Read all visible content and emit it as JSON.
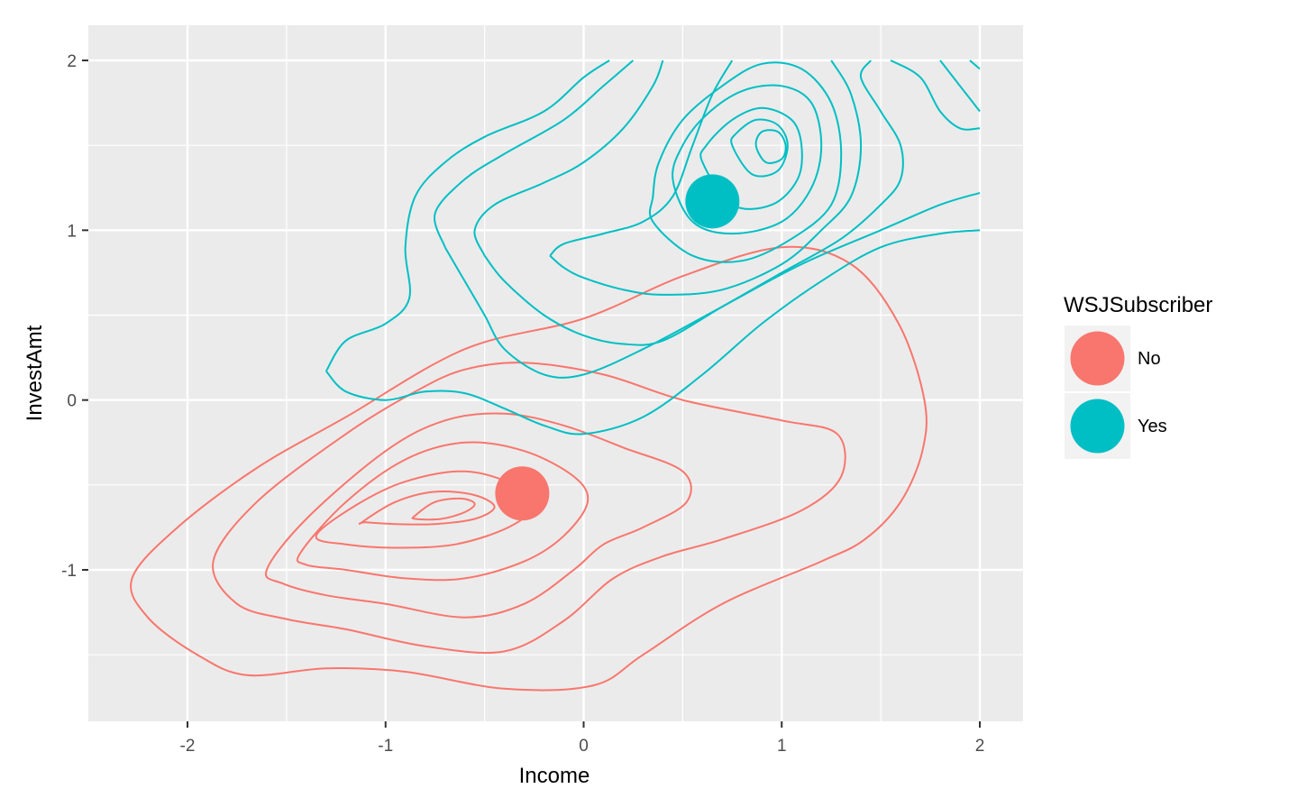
{
  "chart_data": {
    "type": "density2d",
    "xlabel": "Income",
    "ylabel": "InvestAmt",
    "xlim": [
      -2.5,
      2.2
    ],
    "ylim": [
      -1.9,
      2.1
    ],
    "xticks": [
      -2,
      -1,
      0,
      1,
      2
    ],
    "yticks": [
      -1,
      0,
      1,
      2
    ],
    "grid": true,
    "legend": {
      "title": "WSJSubscriber",
      "placement": "right",
      "entries": [
        {
          "label": "No",
          "color": "#F8766D"
        },
        {
          "label": "Yes",
          "color": "#00BFC4"
        }
      ]
    },
    "series": [
      {
        "name": "No",
        "color": "#F8766D",
        "center": {
          "x": -0.31,
          "y": -0.55
        },
        "contours": [
          [
            [
              -2.28,
              -1.05
            ],
            [
              -2.05,
              -0.75
            ],
            [
              -1.65,
              -0.4
            ],
            [
              -1.2,
              -0.1
            ],
            [
              -0.6,
              0.3
            ],
            [
              0,
              0.48
            ],
            [
              0.5,
              0.73
            ],
            [
              1.0,
              0.9
            ],
            [
              1.35,
              0.8
            ],
            [
              1.59,
              0.45
            ],
            [
              1.72,
              0
            ],
            [
              1.71,
              -0.3
            ],
            [
              1.6,
              -0.6
            ],
            [
              1.42,
              -0.82
            ],
            [
              1.2,
              -0.95
            ],
            [
              0.7,
              -1.2
            ],
            [
              0.3,
              -1.5
            ],
            [
              0.05,
              -1.68
            ],
            [
              -0.4,
              -1.7
            ],
            [
              -0.9,
              -1.6
            ],
            [
              -1.3,
              -1.58
            ],
            [
              -1.7,
              -1.62
            ],
            [
              -1.95,
              -1.5
            ],
            [
              -2.2,
              -1.28
            ]
          ],
          [
            [
              -1.87,
              -0.95
            ],
            [
              -1.65,
              -0.6
            ],
            [
              -1.2,
              -0.2
            ],
            [
              -0.85,
              0.05
            ],
            [
              -0.6,
              0.18
            ],
            [
              -0.3,
              0.22
            ],
            [
              0.1,
              0.15
            ],
            [
              0.5,
              0.0
            ],
            [
              1.0,
              -0.12
            ],
            [
              1.28,
              -0.2
            ],
            [
              1.3,
              -0.45
            ],
            [
              1.1,
              -0.65
            ],
            [
              0.7,
              -0.82
            ],
            [
              0.4,
              -0.92
            ],
            [
              0.15,
              -1.05
            ],
            [
              -0.1,
              -1.3
            ],
            [
              -0.4,
              -1.48
            ],
            [
              -0.8,
              -1.45
            ],
            [
              -1.2,
              -1.35
            ],
            [
              -1.5,
              -1.29
            ],
            [
              -1.75,
              -1.2
            ]
          ],
          [
            [
              -1.6,
              -1.0
            ],
            [
              -1.4,
              -0.7
            ],
            [
              -1.0,
              -0.3
            ],
            [
              -0.7,
              -0.12
            ],
            [
              -0.4,
              -0.08
            ],
            [
              -0.1,
              -0.15
            ],
            [
              0.2,
              -0.28
            ],
            [
              0.5,
              -0.42
            ],
            [
              0.52,
              -0.6
            ],
            [
              0.3,
              -0.75
            ],
            [
              0.1,
              -0.85
            ],
            [
              -0.05,
              -1.0
            ],
            [
              -0.3,
              -1.2
            ],
            [
              -0.6,
              -1.28
            ],
            [
              -1.0,
              -1.2
            ],
            [
              -1.3,
              -1.15
            ],
            [
              -1.52,
              -1.08
            ]
          ],
          [
            [
              -1.43,
              -0.9
            ],
            [
              -1.2,
              -0.6
            ],
            [
              -0.9,
              -0.35
            ],
            [
              -0.6,
              -0.25
            ],
            [
              -0.3,
              -0.3
            ],
            [
              -0.05,
              -0.45
            ],
            [
              0.02,
              -0.6
            ],
            [
              -0.1,
              -0.8
            ],
            [
              -0.3,
              -0.95
            ],
            [
              -0.6,
              -1.05
            ],
            [
              -0.9,
              -1.05
            ],
            [
              -1.2,
              -1.0
            ],
            [
              -1.4,
              -0.97
            ]
          ],
          [
            [
              -1.35,
              -0.8
            ],
            [
              -1.15,
              -0.62
            ],
            [
              -0.9,
              -0.48
            ],
            [
              -0.6,
              -0.42
            ],
            [
              -0.35,
              -0.5
            ],
            [
              -0.25,
              -0.62
            ],
            [
              -0.38,
              -0.75
            ],
            [
              -0.65,
              -0.85
            ],
            [
              -0.95,
              -0.87
            ],
            [
              -1.2,
              -0.85
            ]
          ],
          [
            [
              -1.12,
              -0.72
            ],
            [
              -0.95,
              -0.6
            ],
            [
              -0.75,
              -0.54
            ],
            [
              -0.55,
              -0.56
            ],
            [
              -0.45,
              -0.63
            ],
            [
              -0.55,
              -0.7
            ],
            [
              -0.75,
              -0.73
            ],
            [
              -0.95,
              -0.73
            ],
            [
              -1.1,
              -0.72
            ]
          ],
          [
            [
              -0.85,
              -0.68
            ],
            [
              -0.75,
              -0.6
            ],
            [
              -0.62,
              -0.58
            ],
            [
              -0.55,
              -0.61
            ],
            [
              -0.6,
              -0.66
            ],
            [
              -0.72,
              -0.7
            ],
            [
              -0.85,
              -0.7
            ]
          ]
        ]
      },
      {
        "name": "Yes",
        "color": "#00BFC4",
        "center": {
          "x": 0.65,
          "y": 1.17
        },
        "contours": [
          [
            [
              -1.3,
              0.17
            ],
            [
              -1.2,
              0.35
            ],
            [
              -1.0,
              0.45
            ],
            [
              -0.88,
              0.6
            ],
            [
              -0.9,
              0.9
            ],
            [
              -0.85,
              1.2
            ],
            [
              -0.7,
              1.4
            ],
            [
              -0.5,
              1.55
            ],
            [
              -0.2,
              1.7
            ],
            [
              0.0,
              1.9
            ],
            [
              0.13,
              2.0
            ]
          ],
          [
            [
              -1.3,
              0.17
            ],
            [
              -1.2,
              0.05
            ],
            [
              -1.0,
              0.0
            ],
            [
              -0.8,
              0.05
            ],
            [
              -0.6,
              0.04
            ],
            [
              -0.4,
              -0.05
            ],
            [
              -0.2,
              -0.15
            ],
            [
              0.0,
              -0.2
            ],
            [
              0.3,
              -0.1
            ],
            [
              0.6,
              0.15
            ],
            [
              0.9,
              0.45
            ],
            [
              1.2,
              0.7
            ],
            [
              1.5,
              0.9
            ],
            [
              1.8,
              0.98
            ],
            [
              2.0,
              1.0
            ]
          ],
          [
            [
              -0.7,
              0.9
            ],
            [
              -0.75,
              1.1
            ],
            [
              -0.6,
              1.3
            ],
            [
              -0.4,
              1.45
            ],
            [
              -0.1,
              1.65
            ],
            [
              0.1,
              1.85
            ],
            [
              0.25,
              2.0
            ]
          ],
          [
            [
              -0.7,
              0.9
            ],
            [
              -0.6,
              0.7
            ],
            [
              -0.5,
              0.5
            ],
            [
              -0.4,
              0.3
            ],
            [
              -0.2,
              0.15
            ],
            [
              0.0,
              0.15
            ],
            [
              0.3,
              0.3
            ],
            [
              0.7,
              0.55
            ],
            [
              1.1,
              0.8
            ],
            [
              1.5,
              1.0
            ],
            [
              1.8,
              1.15
            ],
            [
              2.0,
              1.22
            ]
          ],
          [
            [
              -0.5,
              0.85
            ],
            [
              -0.55,
              1.0
            ],
            [
              -0.45,
              1.15
            ],
            [
              -0.2,
              1.28
            ],
            [
              0.0,
              1.4
            ],
            [
              0.2,
              1.6
            ],
            [
              0.35,
              1.85
            ],
            [
              0.4,
              2.0
            ]
          ],
          [
            [
              -0.5,
              0.85
            ],
            [
              -0.4,
              0.7
            ],
            [
              -0.2,
              0.5
            ],
            [
              0.0,
              0.38
            ],
            [
              0.2,
              0.33
            ],
            [
              0.4,
              0.35
            ],
            [
              0.7,
              0.55
            ],
            [
              1.0,
              0.75
            ],
            [
              1.3,
              0.95
            ],
            [
              1.5,
              1.15
            ],
            [
              1.6,
              1.3
            ],
            [
              1.6,
              1.5
            ],
            [
              1.5,
              1.7
            ],
            [
              1.4,
              1.9
            ],
            [
              1.45,
              2.0
            ]
          ],
          [
            [
              -0.17,
              0.85
            ],
            [
              -0.1,
              0.92
            ],
            [
              0.1,
              0.98
            ],
            [
              0.3,
              1.05
            ],
            [
              0.45,
              1.2
            ],
            [
              0.55,
              1.5
            ],
            [
              0.65,
              1.8
            ],
            [
              0.75,
              2.0
            ]
          ],
          [
            [
              -0.17,
              0.85
            ],
            [
              -0.1,
              0.78
            ],
            [
              0.0,
              0.72
            ],
            [
              0.2,
              0.65
            ],
            [
              0.4,
              0.62
            ],
            [
              0.7,
              0.65
            ],
            [
              1.0,
              0.8
            ],
            [
              1.2,
              1.0
            ],
            [
              1.35,
              1.2
            ],
            [
              1.4,
              1.5
            ],
            [
              1.35,
              1.8
            ],
            [
              1.25,
              2.0
            ]
          ],
          [
            [
              0.35,
              1.05
            ],
            [
              0.55,
              0.85
            ],
            [
              0.8,
              0.82
            ],
            [
              1.05,
              0.95
            ],
            [
              1.25,
              1.15
            ],
            [
              1.3,
              1.45
            ],
            [
              1.25,
              1.75
            ],
            [
              1.1,
              1.95
            ],
            [
              0.9,
              1.98
            ],
            [
              0.7,
              1.85
            ],
            [
              0.5,
              1.65
            ],
            [
              0.38,
              1.4
            ],
            [
              0.35,
              1.2
            ]
          ],
          [
            [
              0.45,
              1.3
            ],
            [
              0.55,
              1.05
            ],
            [
              0.75,
              0.98
            ],
            [
              1.0,
              1.05
            ],
            [
              1.15,
              1.25
            ],
            [
              1.2,
              1.5
            ],
            [
              1.15,
              1.75
            ],
            [
              1.0,
              1.85
            ],
            [
              0.8,
              1.82
            ],
            [
              0.62,
              1.68
            ],
            [
              0.5,
              1.5
            ]
          ],
          [
            [
              0.6,
              1.4
            ],
            [
              0.75,
              1.15
            ],
            [
              0.95,
              1.15
            ],
            [
              1.08,
              1.3
            ],
            [
              1.1,
              1.5
            ],
            [
              1.05,
              1.65
            ],
            [
              0.9,
              1.72
            ],
            [
              0.75,
              1.65
            ],
            [
              0.62,
              1.5
            ]
          ],
          [
            [
              0.75,
              1.5
            ],
            [
              0.85,
              1.33
            ],
            [
              0.98,
              1.35
            ],
            [
              1.03,
              1.5
            ],
            [
              0.98,
              1.62
            ],
            [
              0.87,
              1.65
            ],
            [
              0.77,
              1.57
            ]
          ],
          [
            [
              0.87,
              1.5
            ],
            [
              0.92,
              1.4
            ],
            [
              1.0,
              1.42
            ],
            [
              1.02,
              1.5
            ],
            [
              0.98,
              1.58
            ],
            [
              0.9,
              1.58
            ]
          ],
          [
            [
              1.55,
              2.0
            ],
            [
              1.7,
              1.9
            ],
            [
              1.8,
              1.7
            ],
            [
              1.9,
              1.6
            ],
            [
              2.0,
              1.6
            ]
          ],
          [
            [
              1.8,
              2.0
            ],
            [
              1.9,
              1.85
            ],
            [
              2.0,
              1.7
            ]
          ],
          [
            [
              1.95,
              2.0
            ],
            [
              2.0,
              1.95
            ]
          ]
        ]
      }
    ]
  }
}
